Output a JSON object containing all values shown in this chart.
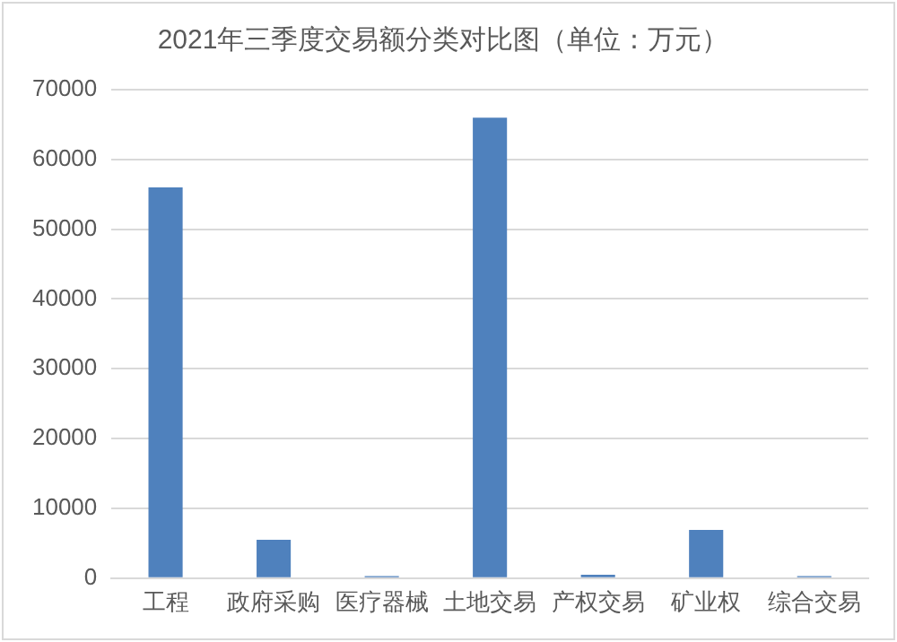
{
  "chart_data": {
    "type": "bar",
    "title": "2021年三季度交易额分类对比图（单位：万元）",
    "categories": [
      "工程",
      "政府采购",
      "医疗器械",
      "土地交易",
      "产权交易",
      "矿业权",
      "综合交易"
    ],
    "values": [
      56000,
      5500,
      300,
      66000,
      500,
      6900,
      300
    ],
    "color": "#4f81bd",
    "ylim": [
      0,
      70000
    ],
    "yticks": [
      0,
      10000,
      20000,
      30000,
      40000,
      50000,
      60000,
      70000
    ],
    "grid": "y",
    "legend": false
  }
}
